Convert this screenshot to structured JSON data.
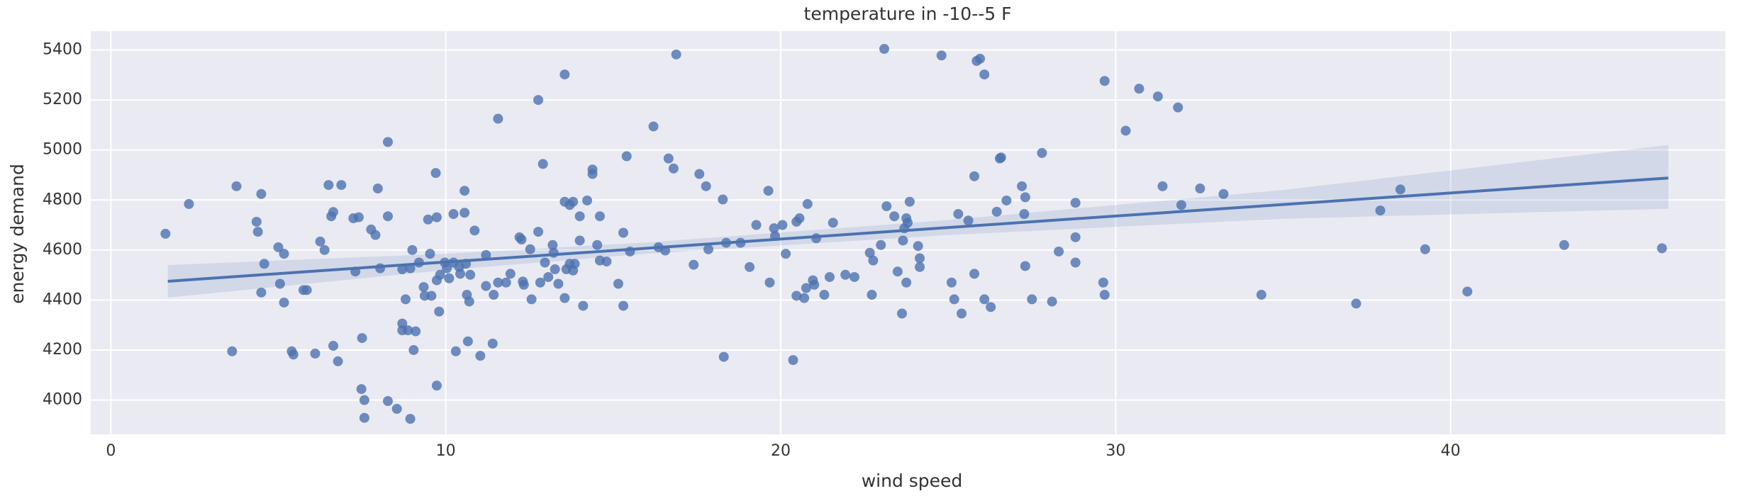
{
  "chart_data": {
    "type": "scatter",
    "title": "temperature in -10--5 F",
    "x_label": "wind speed",
    "y_label": "energy demand",
    "color": "#4c72b0",
    "grid": true,
    "xlim": [
      -0.6,
      48.2
    ],
    "ylim": [
      3863,
      5475
    ],
    "xticks": [
      0,
      10,
      20,
      30,
      40
    ],
    "yticks": [
      4000,
      4200,
      4400,
      4600,
      4800,
      5000,
      5200,
      5400
    ],
    "x": [
      1.63,
      2.33,
      3.62,
      3.75,
      4.35,
      4.39,
      4.49,
      4.49,
      4.58,
      5.0,
      5.17,
      5.05,
      5.17,
      5.4,
      5.45,
      5.75,
      5.85,
      6.1,
      6.25,
      6.38,
      6.5,
      6.58,
      6.64,
      6.64,
      6.78,
      6.88,
      7.24,
      7.3,
      7.4,
      7.48,
      7.5,
      7.57,
      7.57,
      7.77,
      7.9,
      7.97,
      8.04,
      8.27,
      8.27,
      8.27,
      8.54,
      8.7,
      8.7,
      8.7,
      8.8,
      8.87,
      8.94,
      8.94,
      9.0,
      9.04,
      9.1,
      9.2,
      9.34,
      9.37,
      9.47,
      9.53,
      9.57,
      9.7,
      9.73,
      9.73,
      9.73,
      9.8,
      9.83,
      9.97,
      10.03,
      10.1,
      10.23,
      10.23,
      10.3,
      10.4,
      10.43,
      10.56,
      10.56,
      10.6,
      10.63,
      10.66,
      10.7,
      10.73,
      10.86,
      11.03,
      11.2,
      11.2,
      11.43,
      11.4,
      11.56,
      11.56,
      11.8,
      11.93,
      12.2,
      12.26,
      12.3,
      12.33,
      12.52,
      12.56,
      12.76,
      12.76,
      12.82,
      12.9,
      12.96,
      13.06,
      13.19,
      13.22,
      13.26,
      13.36,
      13.55,
      13.55,
      13.55,
      13.6,
      13.7,
      13.7,
      13.8,
      13.8,
      13.85,
      14.0,
      14.0,
      14.1,
      14.22,
      14.38,
      14.38,
      14.52,
      14.6,
      14.6,
      14.8,
      15.15,
      15.3,
      15.3,
      15.4,
      15.5,
      16.2,
      16.35,
      16.55,
      16.65,
      16.8,
      16.88,
      17.4,
      17.57,
      17.77,
      17.84,
      18.27,
      18.3,
      18.37,
      18.8,
      19.07,
      19.27,
      19.63,
      19.67,
      19.8,
      19.83,
      20.05,
      20.15,
      20.37,
      20.47,
      20.47,
      20.56,
      20.7,
      20.76,
      20.8,
      20.96,
      21.0,
      21.06,
      21.3,
      21.46,
      21.56,
      21.93,
      22.2,
      22.66,
      22.72,
      22.76,
      22.99,
      23.09,
      23.16,
      23.39,
      23.49,
      23.62,
      23.65,
      23.69,
      23.75,
      23.75,
      23.79,
      23.85,
      24.1,
      24.15,
      24.15,
      24.8,
      25.1,
      25.18,
      25.3,
      25.4,
      25.6,
      25.78,
      25.78,
      25.85,
      25.95,
      26.08,
      26.08,
      26.27,
      26.45,
      26.54,
      26.58,
      26.74,
      27.2,
      27.27,
      27.3,
      27.3,
      27.5,
      27.8,
      28.1,
      28.3,
      28.8,
      28.8,
      28.8,
      29.63,
      29.67,
      29.67,
      30.3,
      30.7,
      31.26,
      31.4,
      31.86,
      31.96,
      32.52,
      33.22,
      34.35,
      37.18,
      37.9,
      38.5,
      39.24,
      40.5,
      43.39,
      46.31
    ],
    "values": [
      4665,
      4784,
      4195,
      4855,
      4713,
      4673,
      4824,
      4430,
      4545,
      4611,
      4585,
      4465,
      4390,
      4195,
      4182,
      4440,
      4440,
      4186,
      4634,
      4600,
      4860,
      4735,
      4752,
      4217,
      4155,
      4860,
      4727,
      4514,
      4731,
      4044,
      4248,
      4000,
      3929,
      4682,
      4660,
      4846,
      4527,
      5032,
      4735,
      3996,
      3965,
      4523,
      4306,
      4279,
      4403,
      4279,
      4527,
      3925,
      4600,
      4200,
      4275,
      4550,
      4452,
      4417,
      4722,
      4585,
      4417,
      4908,
      4731,
      4479,
      4058,
      4354,
      4501,
      4550,
      4527,
      4487,
      4744,
      4550,
      4195,
      4532,
      4505,
      4749,
      4837,
      4545,
      4421,
      4235,
      4394,
      4501,
      4678,
      4177,
      4580,
      4456,
      4421,
      4226,
      5125,
      4470,
      4470,
      4505,
      4651,
      4642,
      4474,
      4461,
      4603,
      4403,
      4673,
      5200,
      4470,
      4944,
      4550,
      4492,
      4620,
      4589,
      4523,
      4465,
      4793,
      4408,
      5302,
      4523,
      4545,
      4780,
      4793,
      4518,
      4545,
      4735,
      4638,
      4377,
      4798,
      4922,
      4904,
      4620,
      4735,
      4558,
      4554,
      4465,
      4669,
      4377,
      4975,
      4594,
      5094,
      4611,
      4598,
      4966,
      4926,
      5382,
      4541,
      4904,
      4855,
      4603,
      4802,
      4173,
      4629,
      4629,
      4532,
      4700,
      4837,
      4470,
      4687,
      4656,
      4700,
      4585,
      4160,
      4417,
      4713,
      4727,
      4408,
      4448,
      4784,
      4479,
      4461,
      4647,
      4421,
      4492,
      4709,
      4501,
      4492,
      4589,
      4421,
      4558,
      4620,
      5404,
      4775,
      4735,
      4514,
      4346,
      4638,
      4687,
      4470,
      4727,
      4709,
      4793,
      4616,
      4567,
      4532,
      5378,
      4470,
      4403,
      4744,
      4346,
      4718,
      4895,
      4505,
      5356,
      5365,
      5302,
      4403,
      4372,
      4753,
      4966,
      4970,
      4798,
      4855,
      4744,
      4811,
      4536,
      4403,
      4988,
      4394,
      4594,
      4789,
      4651,
      4550,
      4470,
      5276,
      4421,
      5077,
      5245,
      5214,
      4855,
      5170,
      4780,
      4846,
      4824,
      4421,
      4386,
      4758,
      4842,
      4603,
      4434,
      4620,
      4607
    ],
    "fit": {
      "x": [
        1.7,
        10,
        16,
        25,
        35,
        46.5
      ],
      "values": [
        4475,
        4552,
        4607,
        4690,
        4782,
        4888
      ],
      "ci_lower": [
        4410,
        4520,
        4585,
        4660,
        4725,
        4765
      ],
      "ci_upper": [
        4540,
        4585,
        4630,
        4720,
        4840,
        5020
      ]
    }
  }
}
